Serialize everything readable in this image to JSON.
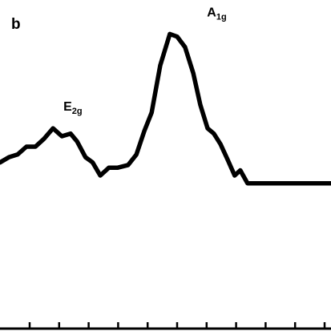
{
  "panel_label": "b",
  "chart_data": {
    "type": "line",
    "title": "",
    "xlabel": "",
    "ylabel": "",
    "xlim": [
      0,
      100
    ],
    "ylim": [
      0,
      100
    ],
    "grid": false,
    "series": [
      {
        "color": "#000000",
        "x": [
          0,
          2.7,
          5.3,
          8.0,
          10.7,
          13.3,
          16.0,
          18.7,
          21.3,
          23.3,
          25.8,
          28.0,
          30.3,
          32.9,
          35.6,
          38.7,
          41.2,
          43.6,
          45.8,
          48.4,
          51.3,
          53.5,
          55.9,
          58.4,
          60.5,
          62.7,
          64.6,
          66.6,
          68.8,
          70.9,
          72.6,
          74.8,
          77.0,
          79.9,
          82.6,
          84.5,
          86.9,
          89.8,
          92.5,
          95.2,
          97.6,
          100
        ],
        "y": [
          42,
          44,
          45,
          48,
          48,
          51,
          55,
          52,
          53,
          50,
          44,
          42,
          37,
          40,
          40,
          41,
          45,
          54,
          61,
          79,
          91,
          90,
          86,
          76,
          64,
          55,
          53,
          49,
          43,
          37,
          39,
          34,
          34,
          34,
          34,
          34,
          34,
          34,
          34,
          34,
          34,
          34
        ]
      }
    ],
    "annotations": [
      {
        "text": "E",
        "sub": "2g",
        "x": 22.0,
        "y": 55
      },
      {
        "text": "A",
        "sub": "1g",
        "x": 65.5,
        "y": 91
      }
    ],
    "x_ticks_count": 11
  }
}
